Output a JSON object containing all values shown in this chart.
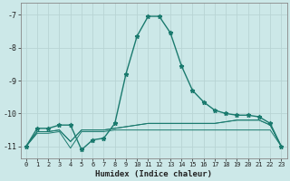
{
  "title": "",
  "xlabel": "Humidex (Indice chaleur)",
  "ylabel": "",
  "background_color": "#cce8e8",
  "grid_color": "#b8d4d4",
  "line_color": "#1a7a6e",
  "xlim": [
    -0.5,
    23.5
  ],
  "ylim": [
    -11.35,
    -6.65
  ],
  "yticks": [
    -11,
    -10,
    -9,
    -8,
    -7
  ],
  "xticks": [
    0,
    1,
    2,
    3,
    4,
    5,
    6,
    7,
    8,
    9,
    10,
    11,
    12,
    13,
    14,
    15,
    16,
    17,
    18,
    19,
    20,
    21,
    22,
    23
  ],
  "line1_x": [
    0,
    1,
    2,
    3,
    4,
    5,
    6,
    7,
    8,
    9,
    10,
    11,
    12,
    13,
    14,
    15,
    16,
    17,
    18,
    19,
    20,
    21,
    22,
    23
  ],
  "line1_y": [
    -11.0,
    -10.45,
    -10.45,
    -10.35,
    -10.35,
    -11.1,
    -10.8,
    -10.75,
    -10.3,
    -8.8,
    -7.65,
    -7.05,
    -7.05,
    -7.55,
    -8.55,
    -9.3,
    -9.65,
    -9.9,
    -10.0,
    -10.05,
    -10.05,
    -10.1,
    -10.3,
    -11.0
  ],
  "line2_x": [
    0,
    1,
    2,
    3,
    4,
    5,
    6,
    7,
    8,
    9,
    10,
    11,
    12,
    13,
    14,
    15,
    16,
    17,
    18,
    19,
    20,
    21,
    22,
    23
  ],
  "line2_y": [
    -11.0,
    -10.6,
    -10.6,
    -10.55,
    -11.05,
    -10.55,
    -10.55,
    -10.55,
    -10.5,
    -10.5,
    -10.5,
    -10.5,
    -10.5,
    -10.5,
    -10.5,
    -10.5,
    -10.5,
    -10.5,
    -10.5,
    -10.5,
    -10.5,
    -10.5,
    -10.5,
    -11.0
  ],
  "line3_x": [
    0,
    1,
    2,
    3,
    4,
    5,
    6,
    7,
    8,
    9,
    10,
    11,
    12,
    13,
    14,
    15,
    16,
    17,
    18,
    19,
    20,
    21,
    22,
    23
  ],
  "line3_y": [
    -11.0,
    -10.55,
    -10.55,
    -10.5,
    -10.85,
    -10.5,
    -10.5,
    -10.5,
    -10.45,
    -10.4,
    -10.35,
    -10.3,
    -10.3,
    -10.3,
    -10.3,
    -10.3,
    -10.3,
    -10.3,
    -10.25,
    -10.2,
    -10.2,
    -10.2,
    -10.35,
    -11.0
  ],
  "line4_x": [
    0,
    1,
    2,
    3,
    4,
    5,
    6,
    7,
    8,
    9,
    10,
    11,
    12,
    13,
    14,
    15,
    16,
    17,
    18,
    19,
    20,
    21,
    22,
    23
  ],
  "line4_y": [
    -11.0,
    -10.55,
    -10.55,
    -10.5,
    -10.85,
    -10.5,
    -10.5,
    -10.5,
    -10.45,
    -10.4,
    -10.35,
    -10.3,
    -10.3,
    -10.3,
    -10.3,
    -10.3,
    -10.3,
    -10.3,
    -10.25,
    -10.2,
    -10.2,
    -10.2,
    -10.35,
    -11.0
  ]
}
